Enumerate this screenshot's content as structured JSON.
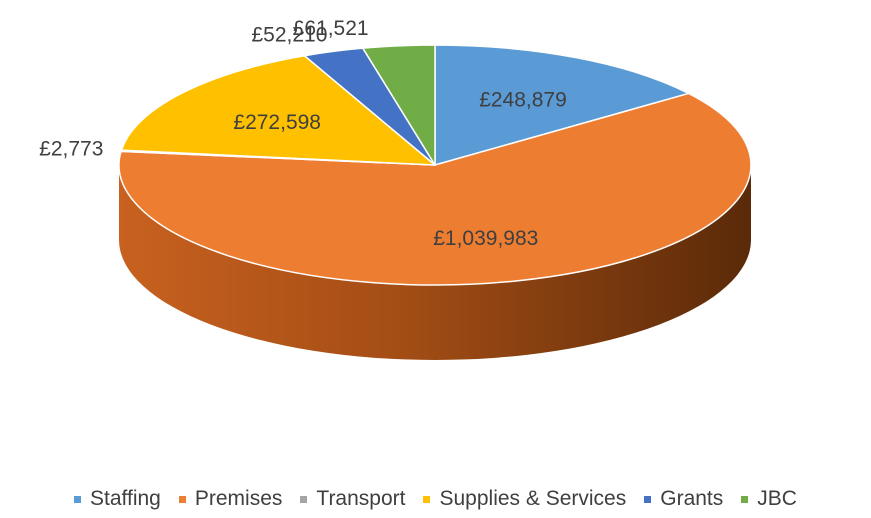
{
  "chart_data": {
    "type": "pie",
    "style": "3d",
    "legend_position": "bottom",
    "categories": [
      "Staffing",
      "Premises",
      "Transport",
      "Supplies & Services",
      "Grants",
      "JBC"
    ],
    "values": [
      248879,
      1039983,
      2773,
      272598,
      52210,
      61521
    ],
    "labels": [
      "£248,879",
      "£1,039,983",
      "£2,773",
      "£272,598",
      "£52,210",
      "£61,521"
    ],
    "colors": [
      "#5b9bd5",
      "#ed7d31",
      "#a5a5a5",
      "#ffc000",
      "#4472c4",
      "#70ad47"
    ]
  }
}
